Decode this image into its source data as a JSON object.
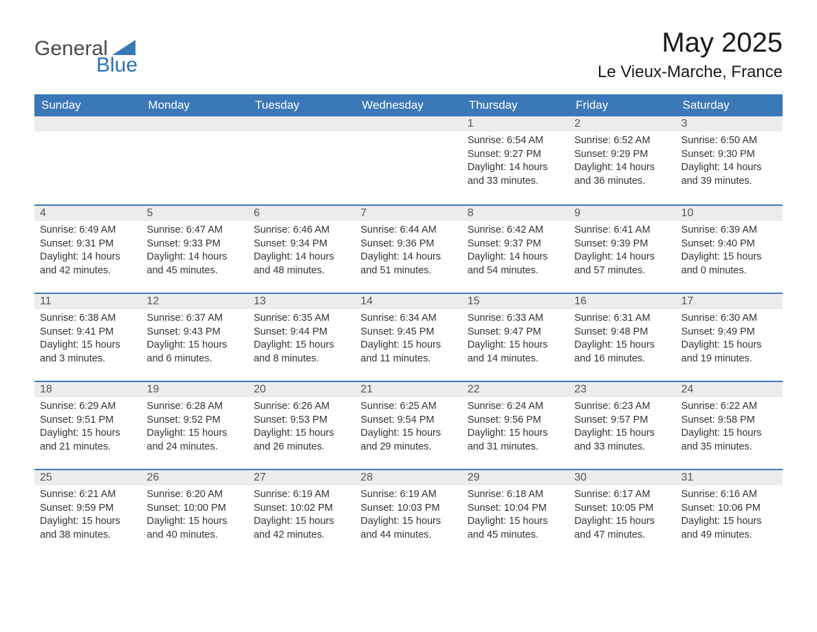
{
  "logo": {
    "word1": "General",
    "word2": "Blue",
    "triangle_color": "#3b78b8"
  },
  "title": "May 2025",
  "location": "Le Vieux-Marche, France",
  "colors": {
    "header_bg": "#3b78b8",
    "header_text": "#ffffff",
    "daynum_bg": "#ececec",
    "row_divider": "#3b78b8",
    "body_text": "#333333"
  },
  "day_headers": [
    "Sunday",
    "Monday",
    "Tuesday",
    "Wednesday",
    "Thursday",
    "Friday",
    "Saturday"
  ],
  "weeks": [
    [
      null,
      null,
      null,
      null,
      {
        "n": "1",
        "sunrise": "6:54 AM",
        "sunset": "9:27 PM",
        "daylight": "14 hours and 33 minutes."
      },
      {
        "n": "2",
        "sunrise": "6:52 AM",
        "sunset": "9:29 PM",
        "daylight": "14 hours and 36 minutes."
      },
      {
        "n": "3",
        "sunrise": "6:50 AM",
        "sunset": "9:30 PM",
        "daylight": "14 hours and 39 minutes."
      }
    ],
    [
      {
        "n": "4",
        "sunrise": "6:49 AM",
        "sunset": "9:31 PM",
        "daylight": "14 hours and 42 minutes."
      },
      {
        "n": "5",
        "sunrise": "6:47 AM",
        "sunset": "9:33 PM",
        "daylight": "14 hours and 45 minutes."
      },
      {
        "n": "6",
        "sunrise": "6:46 AM",
        "sunset": "9:34 PM",
        "daylight": "14 hours and 48 minutes."
      },
      {
        "n": "7",
        "sunrise": "6:44 AM",
        "sunset": "9:36 PM",
        "daylight": "14 hours and 51 minutes."
      },
      {
        "n": "8",
        "sunrise": "6:42 AM",
        "sunset": "9:37 PM",
        "daylight": "14 hours and 54 minutes."
      },
      {
        "n": "9",
        "sunrise": "6:41 AM",
        "sunset": "9:39 PM",
        "daylight": "14 hours and 57 minutes."
      },
      {
        "n": "10",
        "sunrise": "6:39 AM",
        "sunset": "9:40 PM",
        "daylight": "15 hours and 0 minutes."
      }
    ],
    [
      {
        "n": "11",
        "sunrise": "6:38 AM",
        "sunset": "9:41 PM",
        "daylight": "15 hours and 3 minutes."
      },
      {
        "n": "12",
        "sunrise": "6:37 AM",
        "sunset": "9:43 PM",
        "daylight": "15 hours and 6 minutes."
      },
      {
        "n": "13",
        "sunrise": "6:35 AM",
        "sunset": "9:44 PM",
        "daylight": "15 hours and 8 minutes."
      },
      {
        "n": "14",
        "sunrise": "6:34 AM",
        "sunset": "9:45 PM",
        "daylight": "15 hours and 11 minutes."
      },
      {
        "n": "15",
        "sunrise": "6:33 AM",
        "sunset": "9:47 PM",
        "daylight": "15 hours and 14 minutes."
      },
      {
        "n": "16",
        "sunrise": "6:31 AM",
        "sunset": "9:48 PM",
        "daylight": "15 hours and 16 minutes."
      },
      {
        "n": "17",
        "sunrise": "6:30 AM",
        "sunset": "9:49 PM",
        "daylight": "15 hours and 19 minutes."
      }
    ],
    [
      {
        "n": "18",
        "sunrise": "6:29 AM",
        "sunset": "9:51 PM",
        "daylight": "15 hours and 21 minutes."
      },
      {
        "n": "19",
        "sunrise": "6:28 AM",
        "sunset": "9:52 PM",
        "daylight": "15 hours and 24 minutes."
      },
      {
        "n": "20",
        "sunrise": "6:26 AM",
        "sunset": "9:53 PM",
        "daylight": "15 hours and 26 minutes."
      },
      {
        "n": "21",
        "sunrise": "6:25 AM",
        "sunset": "9:54 PM",
        "daylight": "15 hours and 29 minutes."
      },
      {
        "n": "22",
        "sunrise": "6:24 AM",
        "sunset": "9:56 PM",
        "daylight": "15 hours and 31 minutes."
      },
      {
        "n": "23",
        "sunrise": "6:23 AM",
        "sunset": "9:57 PM",
        "daylight": "15 hours and 33 minutes."
      },
      {
        "n": "24",
        "sunrise": "6:22 AM",
        "sunset": "9:58 PM",
        "daylight": "15 hours and 35 minutes."
      }
    ],
    [
      {
        "n": "25",
        "sunrise": "6:21 AM",
        "sunset": "9:59 PM",
        "daylight": "15 hours and 38 minutes."
      },
      {
        "n": "26",
        "sunrise": "6:20 AM",
        "sunset": "10:00 PM",
        "daylight": "15 hours and 40 minutes."
      },
      {
        "n": "27",
        "sunrise": "6:19 AM",
        "sunset": "10:02 PM",
        "daylight": "15 hours and 42 minutes."
      },
      {
        "n": "28",
        "sunrise": "6:19 AM",
        "sunset": "10:03 PM",
        "daylight": "15 hours and 44 minutes."
      },
      {
        "n": "29",
        "sunrise": "6:18 AM",
        "sunset": "10:04 PM",
        "daylight": "15 hours and 45 minutes."
      },
      {
        "n": "30",
        "sunrise": "6:17 AM",
        "sunset": "10:05 PM",
        "daylight": "15 hours and 47 minutes."
      },
      {
        "n": "31",
        "sunrise": "6:16 AM",
        "sunset": "10:06 PM",
        "daylight": "15 hours and 49 minutes."
      }
    ]
  ],
  "labels": {
    "sunrise": "Sunrise: ",
    "sunset": "Sunset: ",
    "daylight": "Daylight: "
  }
}
